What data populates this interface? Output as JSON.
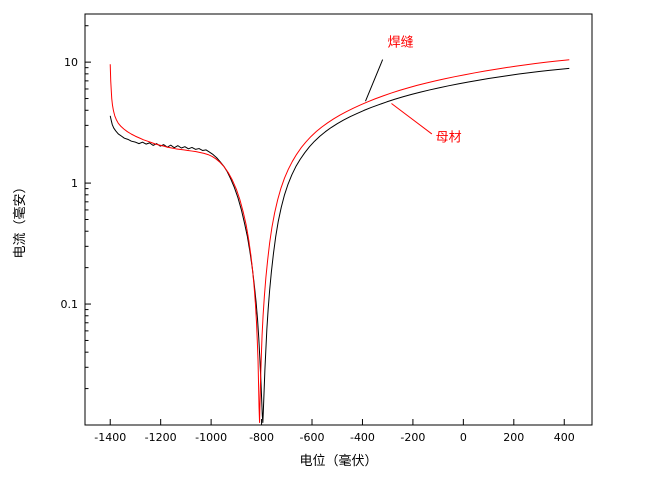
{
  "page": {
    "background_color": "#ffffff",
    "plot_background_color": "#ffffff",
    "frame_color": "#000000"
  },
  "chart_data": {
    "type": "line",
    "title": "",
    "xlabel": "电位（毫伏）",
    "ylabel": "电流（毫安）",
    "xlim": [
      -1500,
      510
    ],
    "ylim": [
      0.01,
      25
    ],
    "yscale": "log",
    "grid": false,
    "legend_position": "none",
    "x_major_ticks": [
      -1400,
      -1200,
      -1000,
      -800,
      -600,
      -400,
      -200,
      0,
      200,
      400
    ],
    "x_major_labels": [
      "-1400",
      "-1200",
      "-1000",
      "-800",
      "-600",
      "-400",
      "-200",
      "0",
      "200",
      "400"
    ],
    "y_major_ticks": [
      0.1,
      1,
      10
    ],
    "y_major_labels": [
      "0.1",
      "1",
      "10"
    ],
    "y_minor_ticks": [
      0.02,
      0.03,
      0.04,
      0.05,
      0.06,
      0.07,
      0.08,
      0.09,
      0.2,
      0.3,
      0.4,
      0.5,
      0.6,
      0.7,
      0.8,
      0.9,
      2,
      3,
      4,
      5,
      6,
      7,
      8,
      9,
      20
    ],
    "series": [
      {
        "id": "base-metal",
        "name": "母材",
        "color": "#000000",
        "width": 1,
        "points": [
          [
            -1400,
            3.6
          ],
          [
            -1396,
            3.3
          ],
          [
            -1392,
            3.05
          ],
          [
            -1386,
            2.85
          ],
          [
            -1378,
            2.7
          ],
          [
            -1368,
            2.55
          ],
          [
            -1356,
            2.45
          ],
          [
            -1344,
            2.35
          ],
          [
            -1330,
            2.3
          ],
          [
            -1316,
            2.22
          ],
          [
            -1300,
            2.18
          ],
          [
            -1286,
            2.12
          ],
          [
            -1272,
            2.18
          ],
          [
            -1258,
            2.1
          ],
          [
            -1244,
            2.15
          ],
          [
            -1230,
            2.05
          ],
          [
            -1216,
            2.12
          ],
          [
            -1202,
            2.02
          ],
          [
            -1188,
            2.08
          ],
          [
            -1174,
            1.98
          ],
          [
            -1160,
            2.06
          ],
          [
            -1146,
            1.96
          ],
          [
            -1132,
            2.04
          ],
          [
            -1118,
            1.95
          ],
          [
            -1104,
            2.0
          ],
          [
            -1090,
            1.92
          ],
          [
            -1076,
            1.97
          ],
          [
            -1062,
            1.9
          ],
          [
            -1048,
            1.93
          ],
          [
            -1034,
            1.86
          ],
          [
            -1020,
            1.88
          ],
          [
            -1006,
            1.8
          ],
          [
            -992,
            1.72
          ],
          [
            -978,
            1.62
          ],
          [
            -964,
            1.5
          ],
          [
            -950,
            1.38
          ],
          [
            -936,
            1.24
          ],
          [
            -922,
            1.08
          ],
          [
            -908,
            0.92
          ],
          [
            -894,
            0.76
          ],
          [
            -880,
            0.6
          ],
          [
            -868,
            0.47
          ],
          [
            -856,
            0.36
          ],
          [
            -846,
            0.27
          ],
          [
            -837,
            0.2
          ],
          [
            -829,
            0.145
          ],
          [
            -822,
            0.105
          ],
          [
            -816,
            0.075
          ],
          [
            -811,
            0.052
          ],
          [
            -807,
            0.036
          ],
          [
            -803,
            0.024
          ],
          [
            -800,
            0.017
          ],
          [
            -797,
            0.012
          ],
          [
            -795,
            0.0105
          ],
          [
            -793,
            0.013
          ],
          [
            -790,
            0.019
          ],
          [
            -787,
            0.028
          ],
          [
            -783,
            0.042
          ],
          [
            -779,
            0.062
          ],
          [
            -774,
            0.09
          ],
          [
            -768,
            0.13
          ],
          [
            -761,
            0.185
          ],
          [
            -753,
            0.26
          ],
          [
            -744,
            0.36
          ],
          [
            -734,
            0.48
          ],
          [
            -722,
            0.63
          ],
          [
            -709,
            0.8
          ],
          [
            -695,
            0.98
          ],
          [
            -680,
            1.17
          ],
          [
            -664,
            1.37
          ],
          [
            -647,
            1.57
          ],
          [
            -629,
            1.78
          ],
          [
            -610,
            2.0
          ],
          [
            -590,
            2.22
          ],
          [
            -569,
            2.44
          ],
          [
            -547,
            2.66
          ],
          [
            -524,
            2.88
          ],
          [
            -500,
            3.1
          ],
          [
            -475,
            3.32
          ],
          [
            -449,
            3.54
          ],
          [
            -422,
            3.76
          ],
          [
            -394,
            3.99
          ],
          [
            -365,
            4.22
          ],
          [
            -335,
            4.45
          ],
          [
            -304,
            4.69
          ],
          [
            -272,
            4.93
          ],
          [
            -239,
            5.17
          ],
          [
            -205,
            5.41
          ],
          [
            -170,
            5.65
          ],
          [
            -134,
            5.89
          ],
          [
            -97,
            6.13
          ],
          [
            -59,
            6.37
          ],
          [
            -20,
            6.61
          ],
          [
            20,
            6.85
          ],
          [
            60,
            7.09
          ],
          [
            100,
            7.32
          ],
          [
            140,
            7.54
          ],
          [
            180,
            7.76
          ],
          [
            220,
            7.97
          ],
          [
            260,
            8.17
          ],
          [
            300,
            8.36
          ],
          [
            340,
            8.54
          ],
          [
            380,
            8.71
          ],
          [
            420,
            8.87
          ]
        ]
      },
      {
        "id": "weld-seam",
        "name": "焊缝",
        "color": "#ff0000",
        "width": 1,
        "points": [
          [
            -1400,
            9.6
          ],
          [
            -1399,
            8.2
          ],
          [
            -1398,
            7.0
          ],
          [
            -1396,
            5.9
          ],
          [
            -1394,
            5.0
          ],
          [
            -1391,
            4.4
          ],
          [
            -1387,
            3.95
          ],
          [
            -1382,
            3.6
          ],
          [
            -1376,
            3.35
          ],
          [
            -1368,
            3.12
          ],
          [
            -1358,
            2.95
          ],
          [
            -1346,
            2.8
          ],
          [
            -1332,
            2.66
          ],
          [
            -1316,
            2.54
          ],
          [
            -1300,
            2.44
          ],
          [
            -1284,
            2.36
          ],
          [
            -1268,
            2.28
          ],
          [
            -1252,
            2.22
          ],
          [
            -1236,
            2.16
          ],
          [
            -1220,
            2.1
          ],
          [
            -1204,
            2.06
          ],
          [
            -1188,
            2.02
          ],
          [
            -1172,
            1.98
          ],
          [
            -1156,
            1.95
          ],
          [
            -1140,
            1.92
          ],
          [
            -1124,
            1.9
          ],
          [
            -1108,
            1.88
          ],
          [
            -1092,
            1.86
          ],
          [
            -1076,
            1.84
          ],
          [
            -1060,
            1.82
          ],
          [
            -1044,
            1.79
          ],
          [
            -1028,
            1.76
          ],
          [
            -1012,
            1.72
          ],
          [
            -996,
            1.66
          ],
          [
            -980,
            1.58
          ],
          [
            -964,
            1.48
          ],
          [
            -948,
            1.36
          ],
          [
            -932,
            1.22
          ],
          [
            -916,
            1.06
          ],
          [
            -900,
            0.89
          ],
          [
            -886,
            0.73
          ],
          [
            -873,
            0.58
          ],
          [
            -861,
            0.45
          ],
          [
            -851,
            0.34
          ],
          [
            -842,
            0.25
          ],
          [
            -835,
            0.185
          ],
          [
            -829,
            0.135
          ],
          [
            -824,
            0.098
          ],
          [
            -820,
            0.07
          ],
          [
            -817,
            0.05
          ],
          [
            -814,
            0.034
          ],
          [
            -812,
            0.022
          ],
          [
            -810,
            0.014
          ],
          [
            -808,
            0.0105
          ],
          [
            -806,
            0.016
          ],
          [
            -804,
            0.024
          ],
          [
            -801,
            0.037
          ],
          [
            -798,
            0.055
          ],
          [
            -794,
            0.08
          ],
          [
            -789,
            0.115
          ],
          [
            -783,
            0.165
          ],
          [
            -776,
            0.23
          ],
          [
            -768,
            0.32
          ],
          [
            -759,
            0.43
          ],
          [
            -748,
            0.57
          ],
          [
            -736,
            0.73
          ],
          [
            -723,
            0.91
          ],
          [
            -709,
            1.1
          ],
          [
            -694,
            1.3
          ],
          [
            -678,
            1.51
          ],
          [
            -661,
            1.73
          ],
          [
            -643,
            1.96
          ],
          [
            -624,
            2.19
          ],
          [
            -604,
            2.43
          ],
          [
            -583,
            2.67
          ],
          [
            -561,
            2.91
          ],
          [
            -538,
            3.15
          ],
          [
            -514,
            3.4
          ],
          [
            -489,
            3.65
          ],
          [
            -463,
            3.9
          ],
          [
            -436,
            4.16
          ],
          [
            -408,
            4.43
          ],
          [
            -379,
            4.7
          ],
          [
            -349,
            4.98
          ],
          [
            -318,
            5.26
          ],
          [
            -286,
            5.55
          ],
          [
            -253,
            5.84
          ],
          [
            -219,
            6.13
          ],
          [
            -184,
            6.42
          ],
          [
            -148,
            6.71
          ],
          [
            -111,
            7.0
          ],
          [
            -73,
            7.29
          ],
          [
            -34,
            7.58
          ],
          [
            6,
            7.87
          ],
          [
            46,
            8.16
          ],
          [
            86,
            8.44
          ],
          [
            126,
            8.72
          ],
          [
            166,
            8.99
          ],
          [
            206,
            9.25
          ],
          [
            246,
            9.5
          ],
          [
            286,
            9.74
          ],
          [
            326,
            9.97
          ],
          [
            366,
            10.19
          ],
          [
            406,
            10.4
          ],
          [
            420,
            10.47
          ]
        ]
      }
    ],
    "annotations": [
      {
        "id": "weld-seam-label",
        "text": "焊缝",
        "color": "#ff0000",
        "x": -300,
        "y": 13.5,
        "leader": {
          "from": [
            -320,
            10.5
          ],
          "to": [
            -388,
            4.75
          ],
          "color": "#000000"
        }
      },
      {
        "id": "base-metal-label",
        "text": "母材",
        "color": "#ff0000",
        "x": -110,
        "y": 2.2,
        "leader": {
          "from": [
            -125,
            2.55
          ],
          "to": [
            -285,
            4.55
          ],
          "color": "#ff0000"
        }
      }
    ]
  }
}
